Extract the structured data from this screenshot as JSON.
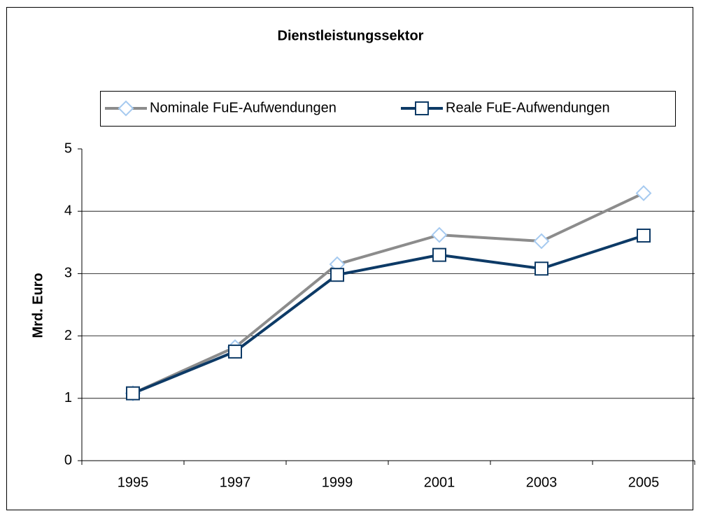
{
  "chart_data": {
    "type": "line",
    "title": "Dienstleistungssektor",
    "y_label": "Mrd. Euro",
    "categories": [
      "1995",
      "1997",
      "1999",
      "2001",
      "2003",
      "2005"
    ],
    "series": [
      {
        "name": "Nominale FuE-Aufwendungen",
        "color": "#8c8c8c",
        "marker": "diamond",
        "marker_color": "#a6caf0",
        "values": [
          1.08,
          1.82,
          3.15,
          3.62,
          3.52,
          4.29
        ]
      },
      {
        "name": "Reale FuE-Aufwendungen",
        "color": "#0d3a66",
        "marker": "square",
        "marker_color": "#0d3a66",
        "values": [
          1.08,
          1.75,
          2.98,
          3.3,
          3.08,
          3.61
        ]
      }
    ],
    "ylim": [
      0,
      5
    ],
    "yticks": [
      0,
      1,
      2,
      3,
      4,
      5
    ],
    "grid": true,
    "legend": "top"
  }
}
